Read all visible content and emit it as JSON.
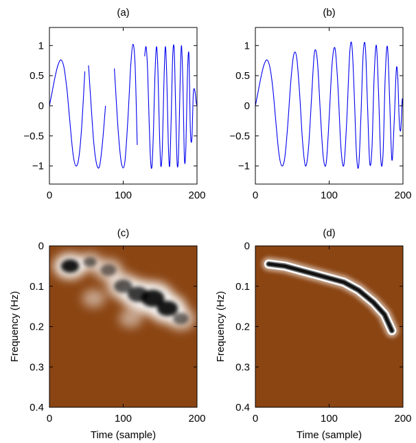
{
  "colors": {
    "signal": "#0000ee",
    "tf_background": "#8b4513",
    "axis": "#000000"
  },
  "chart_data": [
    {
      "type": "line",
      "title": "(a)",
      "xlabel": "",
      "ylabel": "",
      "xlim": [
        0,
        200
      ],
      "ylim": [
        -1.3,
        1.3
      ],
      "xticks": [
        "0",
        "100",
        "200"
      ],
      "yticks": [
        "1",
        "0.5",
        "0",
        "−0.5",
        "−1"
      ],
      "description": "chirp signal with missing samples",
      "series": [
        {
          "x": [
            0,
            4,
            8,
            12,
            16,
            20,
            24
          ],
          "y": [
            0.0,
            0.25,
            0.5,
            0.69,
            0.76,
            0.62,
            0.25
          ]
        },
        {
          "x": [
            24,
            28,
            32,
            36,
            40,
            44,
            48
          ],
          "y": [
            0.25,
            -0.3,
            -0.8,
            -1.0,
            -0.85,
            -0.3,
            0.57
          ]
        },
        {
          "x": [
            53,
            56,
            60,
            64,
            68,
            72,
            76
          ],
          "y": [
            0.67,
            0.1,
            -0.6,
            -0.97,
            -1.0,
            -0.6,
            0.0
          ]
        },
        {
          "x": [
            88,
            90,
            94,
            98,
            102,
            106,
            110
          ],
          "y": [
            0.62,
            0.2,
            -0.55,
            -0.98,
            -0.95,
            -0.3,
            0.65
          ]
        },
        {
          "x": [
            110,
            113,
            116,
            119
          ],
          "y": [
            0.65,
            1.02,
            0.7,
            -0.65
          ]
        },
        {
          "x": [
            129,
            131,
            133,
            135,
            137,
            139,
            141,
            143,
            145,
            147,
            149,
            151,
            153,
            155,
            157,
            159,
            161,
            163,
            165,
            167,
            169,
            171,
            173,
            175,
            177,
            179,
            181,
            183,
            185,
            187,
            189,
            191,
            193,
            195,
            197,
            199,
            200
          ],
          "y": [
            0.82,
            0.98,
            0.6,
            -0.2,
            -0.9,
            -1.0,
            -0.4,
            0.5,
            0.98,
            0.6,
            -0.4,
            -1.0,
            -0.7,
            0.3,
            0.98,
            0.5,
            -0.6,
            -1.0,
            -0.2,
            0.8,
            0.95,
            0.0,
            -0.95,
            -0.8,
            0.35,
            1.0,
            0.3,
            -0.9,
            -0.65,
            0.5,
            0.85,
            -0.4,
            -0.55,
            0.2,
            0.25,
            0.05,
            0.0
          ]
        }
      ]
    },
    {
      "type": "line",
      "title": "(b)",
      "xlabel": "",
      "ylabel": "",
      "xlim": [
        0,
        200
      ],
      "ylim": [
        -1.3,
        1.3
      ],
      "xticks": [
        "0",
        "100",
        "200"
      ],
      "yticks": [
        "1",
        "0.5",
        "0",
        "−0.5",
        "−1"
      ],
      "description": "reconstructed chirp signal",
      "series": [
        {
          "x": [
            0,
            4,
            8,
            12,
            16,
            20,
            24,
            28,
            32,
            36,
            40,
            44,
            48,
            52,
            56,
            60,
            64,
            68,
            72,
            76,
            80,
            84,
            88,
            92,
            96,
            100,
            104,
            108,
            112,
            116,
            120,
            124,
            128,
            131,
            134,
            137,
            140,
            143,
            146,
            149,
            152,
            155,
            158,
            161,
            164,
            167,
            170,
            173,
            176,
            179,
            182,
            185,
            188,
            191,
            193,
            195,
            197,
            199,
            200
          ],
          "y": [
            0.0,
            0.25,
            0.5,
            0.69,
            0.76,
            0.62,
            0.25,
            -0.3,
            -0.8,
            -1.0,
            -0.85,
            -0.3,
            0.4,
            0.85,
            0.8,
            0.2,
            -0.6,
            -1.0,
            -0.7,
            0.1,
            0.88,
            0.75,
            -0.1,
            -0.85,
            -0.95,
            -0.2,
            0.7,
            0.95,
            0.3,
            -0.7,
            -0.98,
            -0.2,
            0.9,
            0.98,
            0.2,
            -0.8,
            -1.0,
            -0.2,
            0.85,
            0.98,
            0.0,
            -0.95,
            -0.7,
            0.5,
            1.0,
            0.2,
            -0.9,
            -0.8,
            0.5,
            0.98,
            0.1,
            -0.9,
            -0.3,
            0.6,
            0.45,
            -0.25,
            -0.4,
            0.1,
            0.0
          ]
        }
      ]
    },
    {
      "type": "heatmap",
      "title": "(c)",
      "xlabel": "Time (sample)",
      "ylabel": "Frequency (Hz)",
      "xlim": [
        0,
        200
      ],
      "ylim": [
        0,
        0.4
      ],
      "xticks": [
        "0",
        "100",
        "200"
      ],
      "yticks": [
        "0",
        "0.1",
        "0.2",
        "0.3",
        "0.4"
      ],
      "description": "time-frequency energy of signal (a), spread ridge",
      "blobs": [
        {
          "t": 28,
          "f": 0.05,
          "w": 1.0,
          "r": 14
        },
        {
          "t": 55,
          "f": 0.04,
          "w": 0.6,
          "r": 10
        },
        {
          "t": 80,
          "f": 0.06,
          "w": 0.55,
          "r": 12
        },
        {
          "t": 100,
          "f": 0.1,
          "w": 0.7,
          "r": 14
        },
        {
          "t": 120,
          "f": 0.12,
          "w": 0.85,
          "r": 16
        },
        {
          "t": 140,
          "f": 0.13,
          "w": 1.0,
          "r": 18
        },
        {
          "t": 160,
          "f": 0.155,
          "w": 1.0,
          "r": 16
        },
        {
          "t": 178,
          "f": 0.18,
          "w": 0.6,
          "r": 12
        },
        {
          "t": 110,
          "f": 0.18,
          "w": 0.25,
          "r": 10
        },
        {
          "t": 60,
          "f": 0.13,
          "w": 0.25,
          "r": 10
        }
      ]
    },
    {
      "type": "heatmap",
      "title": "(d)",
      "xlabel": "Time (sample)",
      "ylabel": "Frequency (Hz)",
      "xlim": [
        0,
        200
      ],
      "ylim": [
        0,
        0.4
      ],
      "xticks": [
        "0",
        "100",
        "200"
      ],
      "yticks": [
        "0",
        "0.1",
        "0.2",
        "0.3",
        "0.4"
      ],
      "description": "time-frequency energy of signal (b), thin ridge",
      "ridge": {
        "t": [
          18,
          40,
          60,
          80,
          100,
          120,
          140,
          160,
          175,
          185
        ],
        "f": [
          0.045,
          0.05,
          0.06,
          0.07,
          0.08,
          0.09,
          0.11,
          0.14,
          0.17,
          0.21
        ]
      }
    }
  ]
}
